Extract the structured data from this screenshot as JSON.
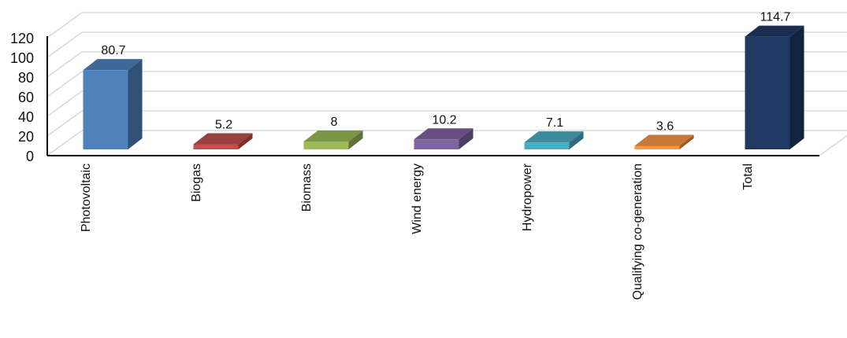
{
  "chart_data": {
    "type": "bar",
    "style": "3d-column",
    "title": "",
    "xlabel": "",
    "ylabel": "",
    "ylim": [
      0,
      120
    ],
    "yticks": [
      "0",
      "20",
      "40",
      "60",
      "80",
      "100",
      "120"
    ],
    "grid": true,
    "legend": "none",
    "categories": [
      "Photovoltaic",
      "Biogas",
      "Biomass",
      "Wind energy",
      "Hydropower",
      "Qualifying co-generation",
      "Total"
    ],
    "values": [
      80.7,
      5.2,
      8,
      10.2,
      7.1,
      3.6,
      114.7
    ],
    "value_labels": [
      "80.7",
      "5.2",
      "8",
      "10.2",
      "7.1",
      "3.6",
      "114.7"
    ],
    "colors": [
      "#4f81bd",
      "#c0504d",
      "#9bbb59",
      "#8064a2",
      "#4bacc6",
      "#f79646",
      "#1f3864"
    ]
  }
}
